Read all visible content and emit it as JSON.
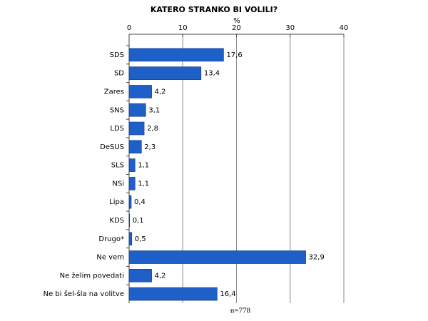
{
  "chart_data": {
    "type": "bar",
    "orientation": "horizontal",
    "title": "KATERO STRANKO BI VOLILI?",
    "x_label": "%",
    "categories": [
      "SDS",
      "SD",
      "Zares",
      "SNS",
      "LDS",
      "DeSUS",
      "SLS",
      "NSi",
      "Lipa",
      "KDS",
      "Drugo*",
      "Ne vem",
      "Ne želim povedati",
      "Ne bi šel-šla na volitve"
    ],
    "values": [
      17.6,
      13.4,
      4.2,
      3.1,
      2.8,
      2.3,
      1.1,
      1.1,
      0.4,
      0.1,
      0.5,
      32.9,
      4.2,
      16.4
    ],
    "value_labels": [
      "17,6",
      "13,4",
      "4,2",
      "3,1",
      "2,8",
      "2,3",
      "1,1",
      "1,1",
      "0,4",
      "0,1",
      "0,5",
      "32,9",
      "4,2",
      "16,4"
    ],
    "color": "#1f5fc8",
    "xlim": [
      0,
      40
    ],
    "xticks": [
      0,
      10,
      20,
      30,
      40
    ],
    "grid": true,
    "annotation": "n=778"
  }
}
